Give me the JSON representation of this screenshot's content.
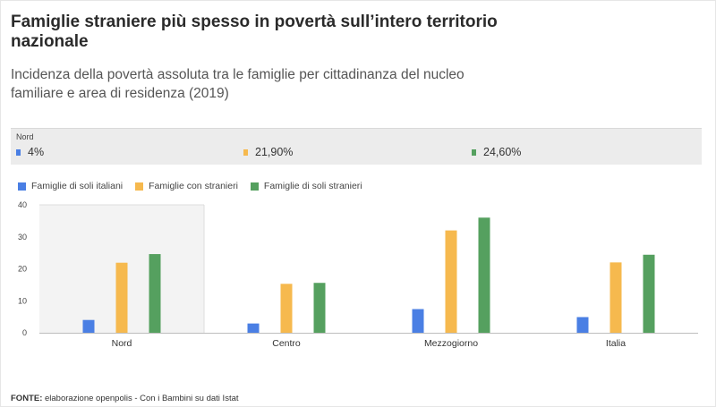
{
  "title": "Famiglie straniere più spesso in povertà sull’intero territorio nazionale",
  "subtitle": "Incidenza della povertà assoluta tra le famiglie per cittadinanza del nucleo familiare e area di residenza (2019)",
  "tooltip": {
    "category": "Nord",
    "items": [
      {
        "label": "4%",
        "color": "#4a7fe4"
      },
      {
        "label": "21,90%",
        "color": "#f6b94e"
      },
      {
        "label": "24,60%",
        "color": "#55a05f"
      }
    ]
  },
  "source": {
    "prefix": "FONTE:",
    "text": " elaborazione openpolis - Con i Bambini su dati Istat"
  },
  "chart_data": {
    "type": "bar",
    "categories": [
      "Nord",
      "Centro",
      "Mezzogiorno",
      "Italia"
    ],
    "series": [
      {
        "name": "Famiglie di soli italiani",
        "color": "#4a7fe4",
        "values": [
          4,
          2.9,
          7.4,
          4.9
        ]
      },
      {
        "name": "Famiglie con stranieri",
        "color": "#f6b94e",
        "values": [
          21.9,
          15.3,
          32,
          22
        ]
      },
      {
        "name": "Famiglie di soli stranieri",
        "color": "#55a05f",
        "values": [
          24.6,
          15.6,
          36,
          24.4
        ]
      }
    ],
    "ylim": [
      0,
      40
    ],
    "yticks": [
      0,
      10,
      20,
      30,
      40
    ],
    "highlighted_category": "Nord",
    "legend_position": "top-left",
    "grid": false
  }
}
